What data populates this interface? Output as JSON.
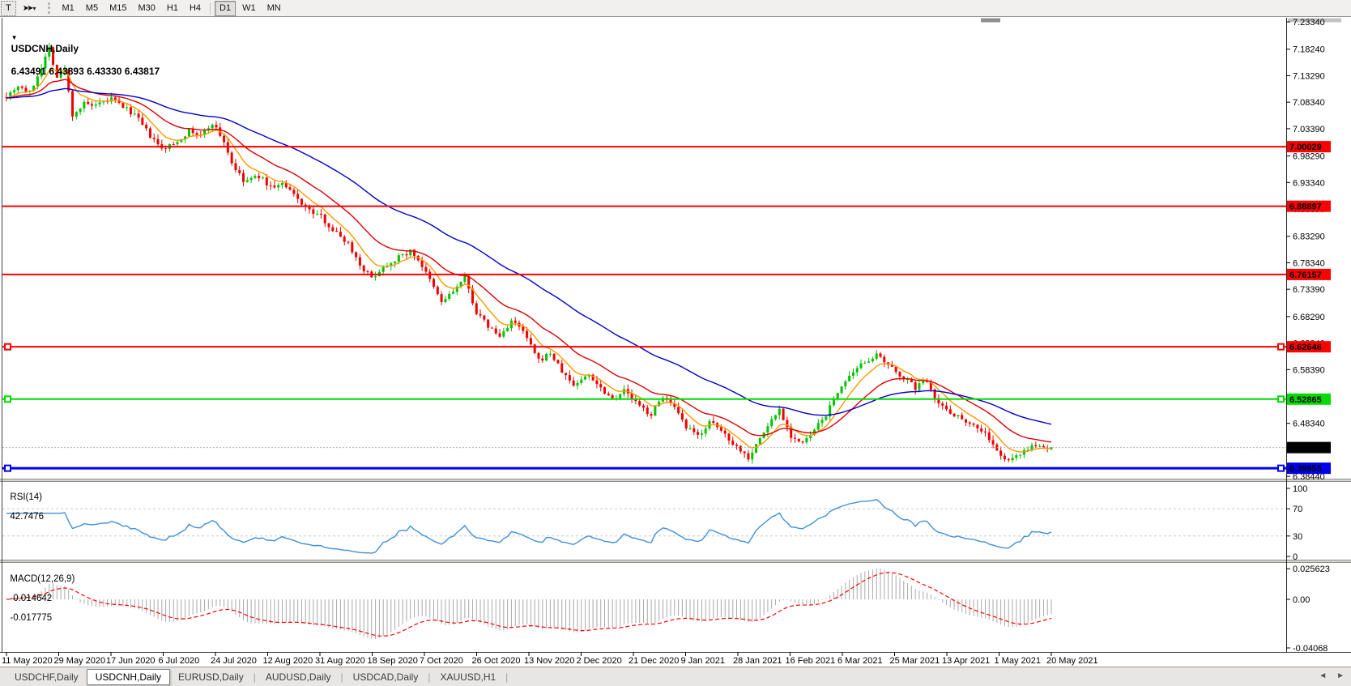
{
  "toolbar": {
    "text_tool_label": "T",
    "timeframes": [
      "M1",
      "M5",
      "M15",
      "M30",
      "H1",
      "H4",
      "D1",
      "W1",
      "MN"
    ],
    "active_timeframe": "D1"
  },
  "icons": {
    "title_marker": "▼",
    "dropdown_caret": "▾",
    "pointer_tool": "➤➤",
    "tab_scroll_left": "◄",
    "tab_scroll_right": "►"
  },
  "chart": {
    "symbol_title": "USDCNH,Daily",
    "ohlc_line": "6.43491 6.43893 6.43330 6.43817"
  },
  "chart_data": {
    "type": "candlestick",
    "symbol": "USDCNH",
    "timeframe": "Daily",
    "bars_total": 270,
    "up_color": "#00C400",
    "down_color": "#F00000",
    "x_labels": [
      "11 May 2020",
      "29 May 2020",
      "17 Jun 2020",
      "6 Jul 2020",
      "24 Jul 2020",
      "12 Aug 2020",
      "31 Aug 2020",
      "18 Sep 2020",
      "7 Oct 2020",
      "26 Oct 2020",
      "13 Nov 2020",
      "2 Dec 2020",
      "21 Dec 2020",
      "9 Jan 2021",
      "28 Jan 2021",
      "16 Feb 2021",
      "6 Mar 2021",
      "25 Mar 2021",
      "13 Apr 2021",
      "1 May 2021",
      "20 May 2021"
    ],
    "y_ticks": [
      "7.23340",
      "7.18240",
      "7.13290",
      "7.08340",
      "7.03390",
      "6.98290",
      "6.93340",
      "6.88390",
      "6.83290",
      "6.78340",
      "6.73390",
      "6.68290",
      "6.63340",
      "6.58390",
      "6.53290",
      "6.48340",
      "6.43390",
      "6.38440"
    ],
    "y_range": [
      6.3816,
      7.241
    ],
    "close_path": [
      [
        0,
        7.095
      ],
      [
        3,
        7.115
      ],
      [
        6,
        7.1
      ],
      [
        9,
        7.15
      ],
      [
        11,
        7.185
      ],
      [
        13,
        7.13
      ],
      [
        15,
        7.145
      ],
      [
        17,
        7.06
      ],
      [
        20,
        7.08
      ],
      [
        23,
        7.075
      ],
      [
        27,
        7.09
      ],
      [
        30,
        7.075
      ],
      [
        33,
        7.06
      ],
      [
        37,
        7.02
      ],
      [
        40,
        6.995
      ],
      [
        43,
        7.005
      ],
      [
        47,
        7.03
      ],
      [
        50,
        7.02
      ],
      [
        53,
        7.045
      ],
      [
        56,
        7.01
      ],
      [
        58,
        6.97
      ],
      [
        61,
        6.935
      ],
      [
        65,
        6.945
      ],
      [
        68,
        6.925
      ],
      [
        71,
        6.93
      ],
      [
        74,
        6.91
      ],
      [
        78,
        6.88
      ],
      [
        81,
        6.87
      ],
      [
        84,
        6.845
      ],
      [
        88,
        6.82
      ],
      [
        91,
        6.78
      ],
      [
        94,
        6.755
      ],
      [
        97,
        6.775
      ],
      [
        100,
        6.79
      ],
      [
        104,
        6.805
      ],
      [
        106,
        6.79
      ],
      [
        109,
        6.75
      ],
      [
        112,
        6.71
      ],
      [
        115,
        6.73
      ],
      [
        118,
        6.755
      ],
      [
        121,
        6.69
      ],
      [
        124,
        6.665
      ],
      [
        127,
        6.645
      ],
      [
        130,
        6.675
      ],
      [
        133,
        6.655
      ],
      [
        137,
        6.6
      ],
      [
        140,
        6.615
      ],
      [
        143,
        6.58
      ],
      [
        146,
        6.555
      ],
      [
        150,
        6.575
      ],
      [
        153,
        6.55
      ],
      [
        156,
        6.53
      ],
      [
        159,
        6.545
      ],
      [
        163,
        6.515
      ],
      [
        166,
        6.5
      ],
      [
        169,
        6.535
      ],
      [
        172,
        6.51
      ],
      [
        175,
        6.475
      ],
      [
        178,
        6.46
      ],
      [
        181,
        6.485
      ],
      [
        184,
        6.47
      ],
      [
        188,
        6.44
      ],
      [
        191,
        6.42
      ],
      [
        194,
        6.455
      ],
      [
        197,
        6.49
      ],
      [
        199,
        6.51
      ],
      [
        202,
        6.46
      ],
      [
        205,
        6.445
      ],
      [
        208,
        6.47
      ],
      [
        211,
        6.5
      ],
      [
        215,
        6.555
      ],
      [
        218,
        6.575
      ],
      [
        221,
        6.6
      ],
      [
        224,
        6.61
      ],
      [
        227,
        6.59
      ],
      [
        230,
        6.575
      ],
      [
        234,
        6.55
      ],
      [
        237,
        6.565
      ],
      [
        240,
        6.52
      ],
      [
        244,
        6.5
      ],
      [
        248,
        6.485
      ],
      [
        252,
        6.465
      ],
      [
        256,
        6.42
      ],
      [
        259,
        6.415
      ],
      [
        262,
        6.435
      ],
      [
        265,
        6.44
      ],
      [
        269,
        6.438
      ]
    ],
    "last_bar": {
      "open": 6.43491,
      "high": 6.43893,
      "low": 6.4333,
      "close": 6.43817
    },
    "current_price": 6.43817,
    "current_price_label": "6.43817",
    "hlines": [
      {
        "price": 7.00029,
        "label": "7.00029",
        "color": "#FF0000",
        "width": 2,
        "handles": false
      },
      {
        "price": 6.88897,
        "label": "6.88897",
        "color": "#FF0000",
        "width": 2,
        "handles": false
      },
      {
        "price": 6.76157,
        "label": "6.76157",
        "color": "#FF0000",
        "width": 2,
        "handles": false
      },
      {
        "price": 6.62646,
        "label": "6.62646",
        "color": "#FF0000",
        "width": 2,
        "handles": true
      },
      {
        "price": 6.52865,
        "label": "6.52865",
        "color": "#00DC00",
        "width": 2,
        "handles": true
      },
      {
        "price": 6.39955,
        "label": "6.39955",
        "color": "#0000F0",
        "width": 3,
        "handles": true
      }
    ],
    "moving_averages": [
      {
        "name": "ma-fast",
        "period": 8,
        "color": "#FF9900"
      },
      {
        "name": "ma-mid",
        "period": 21,
        "color": "#DD0000"
      },
      {
        "name": "ma-slow",
        "period": 55,
        "color": "#0000CC"
      }
    ],
    "indicators": [
      {
        "type": "line",
        "name": "RSI",
        "label": "RSI(14)",
        "value_text": "42.7476",
        "period": 14,
        "levels": [
          100,
          70,
          30,
          0
        ],
        "dashed_levels": [
          70,
          30
        ],
        "color": "#4090D8",
        "range": [
          0,
          100
        ]
      },
      {
        "type": "macd",
        "name": "MACD",
        "label": "MACD(12,26,9)",
        "main_text": "-0.014642",
        "signal_text": "-0.017775",
        "fast": 12,
        "slow": 26,
        "signal_period": 9,
        "axis_labels": [
          {
            "text": "0.025623",
            "value": 0.025623
          },
          {
            "text": "0.00",
            "value": 0
          },
          {
            "text": "-0.04068",
            "value": -0.04068
          }
        ],
        "histogram_color": "#A8A8A8",
        "signal_color": "#FF0000"
      }
    ]
  },
  "tabs": [
    {
      "label": "USDCHF,Daily",
      "active": false
    },
    {
      "label": "USDCNH,Daily",
      "active": true
    },
    {
      "label": "EURUSD,Daily",
      "active": false
    },
    {
      "label": "AUDUSD,Daily",
      "active": false
    },
    {
      "label": "USDCAD,Daily",
      "active": false
    },
    {
      "label": "XAUUSD,H1",
      "active": false
    }
  ]
}
